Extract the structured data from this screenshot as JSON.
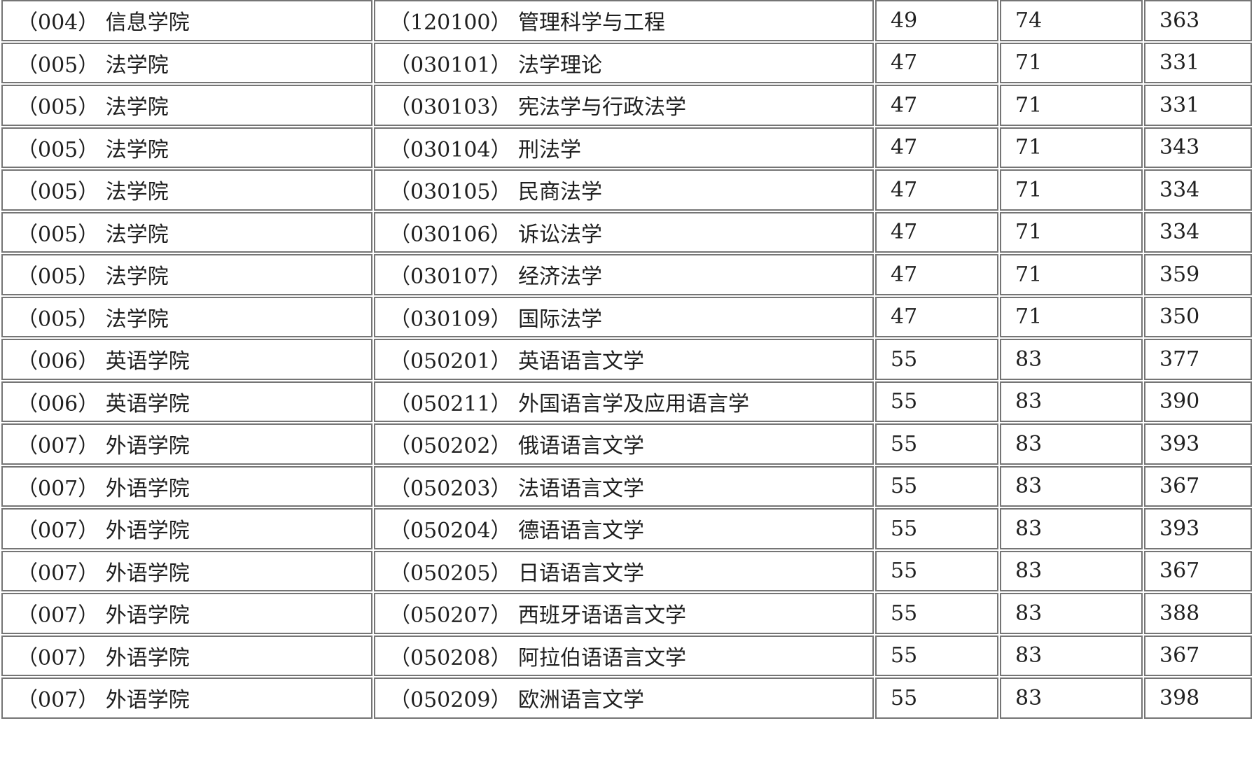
{
  "table": {
    "column_keys": [
      "college",
      "major",
      "score_single",
      "score_course",
      "score_total"
    ],
    "rows": [
      {
        "college": "（004） 信息学院",
        "major": "（120100） 管理科学与工程",
        "score_single": "49",
        "score_course": "74",
        "score_total": "363"
      },
      {
        "college": "（005） 法学院",
        "major": "（030101） 法学理论",
        "score_single": "47",
        "score_course": "71",
        "score_total": "331"
      },
      {
        "college": "（005） 法学院",
        "major": "（030103） 宪法学与行政法学",
        "score_single": "47",
        "score_course": "71",
        "score_total": "331"
      },
      {
        "college": "（005） 法学院",
        "major": "（030104） 刑法学",
        "score_single": "47",
        "score_course": "71",
        "score_total": "343"
      },
      {
        "college": "（005） 法学院",
        "major": "（030105） 民商法学",
        "score_single": "47",
        "score_course": "71",
        "score_total": "334"
      },
      {
        "college": "（005） 法学院",
        "major": "（030106） 诉讼法学",
        "score_single": "47",
        "score_course": "71",
        "score_total": "334"
      },
      {
        "college": "（005） 法学院",
        "major": "（030107） 经济法学",
        "score_single": "47",
        "score_course": "71",
        "score_total": "359"
      },
      {
        "college": "（005） 法学院",
        "major": "（030109） 国际法学",
        "score_single": "47",
        "score_course": "71",
        "score_total": "350"
      },
      {
        "college": "（006） 英语学院",
        "major": "（050201） 英语语言文学",
        "score_single": "55",
        "score_course": "83",
        "score_total": "377"
      },
      {
        "college": "（006） 英语学院",
        "major": "（050211） 外国语言学及应用语言学",
        "score_single": "55",
        "score_course": "83",
        "score_total": "390"
      },
      {
        "college": "（007） 外语学院",
        "major": "（050202） 俄语语言文学",
        "score_single": "55",
        "score_course": "83",
        "score_total": "393"
      },
      {
        "college": "（007） 外语学院",
        "major": "（050203） 法语语言文学",
        "score_single": "55",
        "score_course": "83",
        "score_total": "367"
      },
      {
        "college": "（007） 外语学院",
        "major": "（050204） 德语语言文学",
        "score_single": "55",
        "score_course": "83",
        "score_total": "393"
      },
      {
        "college": "（007） 外语学院",
        "major": "（050205） 日语语言文学",
        "score_single": "55",
        "score_course": "83",
        "score_total": "367"
      },
      {
        "college": "（007） 外语学院",
        "major": "（050207） 西班牙语语言文学",
        "score_single": "55",
        "score_course": "83",
        "score_total": "388"
      },
      {
        "college": "（007） 外语学院",
        "major": "（050208） 阿拉伯语语言文学",
        "score_single": "55",
        "score_course": "83",
        "score_total": "367"
      },
      {
        "college": "（007） 外语学院",
        "major": "（050209） 欧洲语言文学",
        "score_single": "55",
        "score_course": "83",
        "score_total": "398"
      }
    ],
    "colors": {
      "border": "#757575",
      "text": "#1f1f1f",
      "background": "#ffffff"
    }
  }
}
